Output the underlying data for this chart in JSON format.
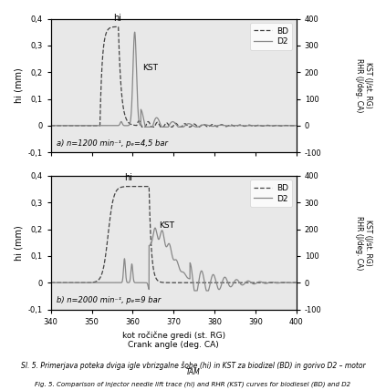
{
  "xlim": [
    340,
    400
  ],
  "ylim_left": [
    -0.1,
    0.4
  ],
  "ylim_right": [
    -100,
    400
  ],
  "yticks_left": [
    -0.1,
    0,
    0.1,
    0.2,
    0.3,
    0.4
  ],
  "yticks_right": [
    -100,
    0,
    100,
    200,
    300,
    400
  ],
  "xticks": [
    340,
    350,
    360,
    370,
    380,
    390,
    400
  ],
  "xlabel_top": "kot ročične gredi (st. RG)",
  "xlabel_bot": "Crank angle (deg. CA)",
  "ylabel_left": "hi (mm)",
  "ylabel_right_line1": "KST (J/st. RG)",
  "ylabel_right_line2": "RHR (J/deg. CA)",
  "annotation_a": "a) n=1200 min⁻¹, pₑ=4,5 bar",
  "annotation_b": "b) n=2000 min⁻¹, pₑ=9 bar",
  "legend_labels": [
    "BD",
    "D2"
  ],
  "color_bd": "#444444",
  "color_d2": "#888888",
  "plot_bg": "#e8e8e8",
  "caption_line1": "Sl. 5. Primerjava poteka dviga igle vbrizgalne šobe (hi) in KST za biodizel (BD) in gorivo D2 – motor",
  "caption_line2": "TAM",
  "caption_line3": "Fig. 5. Comparison of injector needle lift trace (hi) and RHR (KST) curves for biodiesel (BD) and D2"
}
